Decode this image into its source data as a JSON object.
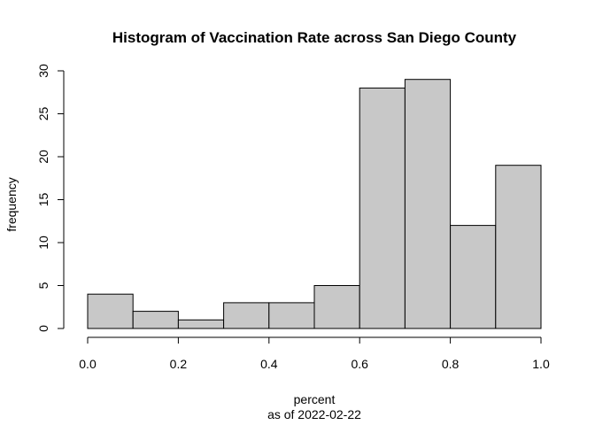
{
  "chart_data": {
    "type": "bar",
    "title": "Histogram of Vaccination Rate across San Diego County",
    "xlabel": "percent",
    "xlabel_sub": "as of 2022-02-22",
    "ylabel": "frequency",
    "bins": [
      {
        "start": 0.0,
        "end": 0.1,
        "count": 4
      },
      {
        "start": 0.1,
        "end": 0.2,
        "count": 2
      },
      {
        "start": 0.2,
        "end": 0.3,
        "count": 1
      },
      {
        "start": 0.3,
        "end": 0.4,
        "count": 3
      },
      {
        "start": 0.4,
        "end": 0.5,
        "count": 3
      },
      {
        "start": 0.5,
        "end": 0.6,
        "count": 5
      },
      {
        "start": 0.6,
        "end": 0.7,
        "count": 28
      },
      {
        "start": 0.7,
        "end": 0.8,
        "count": 29
      },
      {
        "start": 0.8,
        "end": 0.9,
        "count": 12
      },
      {
        "start": 0.9,
        "end": 1.0,
        "count": 19
      }
    ],
    "xlim": [
      0,
      1
    ],
    "ylim": [
      0,
      30
    ],
    "x_ticks": [
      "0.0",
      "0.2",
      "0.4",
      "0.6",
      "0.8",
      "1.0"
    ],
    "y_ticks": [
      "0",
      "5",
      "10",
      "15",
      "20",
      "25",
      "30"
    ],
    "grid": false,
    "legend": "none",
    "bar_fill": "#c8c8c8",
    "bar_stroke": "#000000"
  }
}
